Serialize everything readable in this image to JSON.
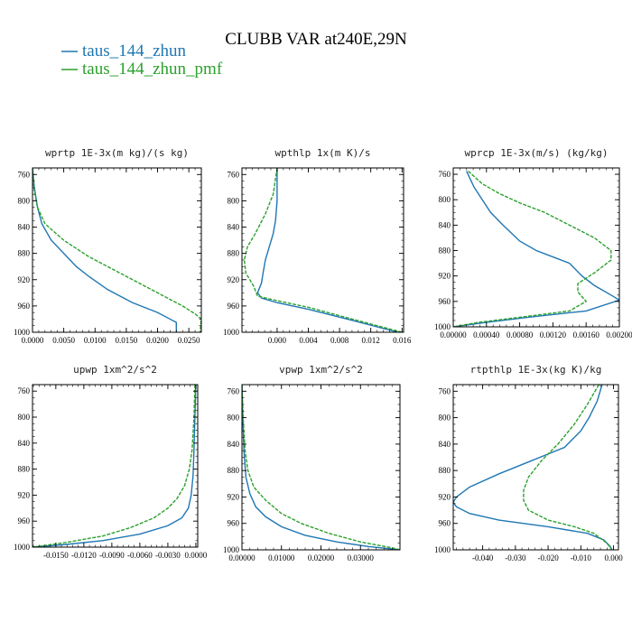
{
  "title": "CLUBB VAR at240E,29N",
  "legend": [
    {
      "label": "taus_144_zhun",
      "color": "#1f77b4",
      "dash": false
    },
    {
      "label": "taus_144_zhun_pmf",
      "color": "#2ca02c",
      "dash": true
    }
  ],
  "chart_data": [
    {
      "type": "line",
      "title": "wprtp  1E-3x(m kg)/(s kg)",
      "xlim": [
        0,
        0.027
      ],
      "ylim": [
        1000,
        750
      ],
      "xticks": [
        0,
        0.005,
        0.01,
        0.015,
        0.02,
        0.025
      ],
      "xtick_labels": [
        "0.0000",
        "0.0050",
        "0.0100",
        "0.0150",
        "0.0200",
        "0.0250"
      ],
      "yticks": [
        760,
        800,
        840,
        880,
        920,
        960,
        1000
      ],
      "series": [
        {
          "name": "taus_144_zhun",
          "x": [
            0.0,
            0.0003,
            0.0008,
            0.0015,
            0.003,
            0.005,
            0.007,
            0.009,
            0.012,
            0.016,
            0.02,
            0.022,
            0.023,
            0.023
          ],
          "y": [
            750,
            780,
            810,
            835,
            860,
            880,
            900,
            915,
            935,
            955,
            970,
            980,
            985,
            1000
          ]
        },
        {
          "name": "taus_144_zhun_pmf",
          "x": [
            0.0,
            0.0002,
            0.0008,
            0.002,
            0.005,
            0.009,
            0.013,
            0.017,
            0.021,
            0.024,
            0.026,
            0.027,
            0.0268
          ],
          "y": [
            750,
            780,
            810,
            835,
            860,
            885,
            905,
            925,
            945,
            960,
            972,
            980,
            1000
          ]
        }
      ]
    },
    {
      "type": "line",
      "title": "wpthlp  1x(m K)/s",
      "xlim": [
        -0.0045,
        0.0162
      ],
      "ylim": [
        1000,
        750
      ],
      "xticks": [
        0,
        0.004,
        0.008,
        0.012,
        0.016
      ],
      "xtick_labels": [
        "0.000",
        "0.004",
        "0.008",
        "0.012",
        "0.016"
      ],
      "yticks": [
        760,
        800,
        840,
        880,
        920,
        960,
        1000
      ],
      "series": [
        {
          "name": "taus_144_zhun",
          "x": [
            0.0,
            0.0,
            -0.0002,
            -0.0005,
            -0.001,
            -0.0015,
            -0.0018,
            -0.002,
            -0.0025,
            -0.002,
            0.0,
            0.004,
            0.009,
            0.0155
          ],
          "y": [
            750,
            800,
            830,
            850,
            870,
            890,
            910,
            925,
            940,
            948,
            955,
            965,
            980,
            1000
          ]
        },
        {
          "name": "taus_144_zhun_pmf",
          "x": [
            0.0,
            -0.0005,
            -0.0015,
            -0.0028,
            -0.0038,
            -0.0042,
            -0.004,
            -0.003,
            -0.0025,
            0.0,
            0.004,
            0.009,
            0.016
          ],
          "y": [
            750,
            790,
            820,
            850,
            870,
            890,
            910,
            930,
            945,
            952,
            962,
            978,
            1000
          ]
        }
      ]
    },
    {
      "type": "line",
      "title": "wprcp  1E-3x(m/s) (kg/kg)",
      "xlim": [
        0,
        0.002
      ],
      "ylim": [
        1000,
        750
      ],
      "xticks": [
        0,
        0.0004,
        0.0008,
        0.0012,
        0.0016,
        0.002
      ],
      "xtick_labels": [
        "0.00000",
        "0.00040",
        "0.00080",
        "0.00120",
        "0.00160",
        "0.00200"
      ],
      "yticks": [
        760,
        800,
        840,
        880,
        920,
        960,
        1000
      ],
      "series": [
        {
          "name": "taus_144_zhun",
          "x": [
            0.00016,
            0.00025,
            0.00035,
            0.00045,
            0.0006,
            0.0008,
            0.001,
            0.0012,
            0.0014,
            0.00155,
            0.0017,
            0.0019,
            0.002,
            0.0016,
            0.0009,
            0.0004,
            0.0
          ],
          "y": [
            755,
            780,
            800,
            820,
            840,
            865,
            880,
            890,
            900,
            920,
            935,
            950,
            958,
            975,
            985,
            993,
            1000
          ]
        },
        {
          "name": "taus_144_zhun_pmf",
          "x": [
            0.00018,
            0.00035,
            0.00055,
            0.0008,
            0.0011,
            0.0014,
            0.0017,
            0.0019,
            0.0019,
            0.0017,
            0.0015,
            0.0015,
            0.0016,
            0.0014,
            0.0008,
            0.0003,
            0.0
          ],
          "y": [
            755,
            775,
            790,
            805,
            820,
            840,
            860,
            880,
            895,
            915,
            932,
            945,
            960,
            975,
            985,
            993,
            1000
          ]
        }
      ]
    },
    {
      "type": "line",
      "title": "upwp  1xm^2/s^2",
      "xlim": [
        -0.0175,
        0.0002
      ],
      "ylim": [
        1000,
        750
      ],
      "xticks": [
        -0.015,
        -0.012,
        -0.009,
        -0.006,
        -0.003,
        0
      ],
      "xtick_labels": [
        "-0.0150",
        "-0.0120",
        "-0.0090",
        "-0.0060",
        "-0.0030",
        "0.0000"
      ],
      "yticks": [
        760,
        800,
        840,
        880,
        920,
        960,
        1000
      ],
      "series": [
        {
          "name": "taus_144_zhun",
          "x": [
            0.0,
            -0.0001,
            -0.0002,
            -0.0003,
            -0.0005,
            -0.0008,
            -0.0015,
            -0.003,
            -0.006,
            -0.01,
            -0.014,
            -0.0175
          ],
          "y": [
            750,
            800,
            850,
            890,
            920,
            940,
            955,
            967,
            980,
            990,
            996,
            1000
          ]
        },
        {
          "name": "taus_144_zhun_pmf",
          "x": [
            -0.0001,
            -0.0002,
            -0.0004,
            -0.0007,
            -0.0012,
            -0.002,
            -0.003,
            -0.0045,
            -0.007,
            -0.01,
            -0.014,
            -0.0175
          ],
          "y": [
            750,
            800,
            850,
            880,
            905,
            925,
            940,
            955,
            970,
            983,
            993,
            1000
          ]
        }
      ]
    },
    {
      "type": "line",
      "title": "vpwp  1xm^2/s^2",
      "xlim": [
        0,
        0.04
      ],
      "ylim": [
        1000,
        750
      ],
      "xticks": [
        0,
        0.01,
        0.02,
        0.03
      ],
      "xtick_labels": [
        "0.00000",
        "0.01000",
        "0.02000",
        "0.03000"
      ],
      "yticks": [
        760,
        800,
        840,
        880,
        920,
        960,
        1000
      ],
      "series": [
        {
          "name": "taus_144_zhun",
          "x": [
            0.0,
            0.0002,
            0.0005,
            0.001,
            0.002,
            0.0035,
            0.006,
            0.01,
            0.016,
            0.024,
            0.032,
            0.04
          ],
          "y": [
            750,
            800,
            850,
            890,
            915,
            935,
            950,
            965,
            978,
            988,
            995,
            1000
          ]
        },
        {
          "name": "taus_144_zhun_pmf",
          "x": [
            0.0,
            0.0003,
            0.0008,
            0.0015,
            0.003,
            0.006,
            0.01,
            0.015,
            0.022,
            0.03,
            0.038,
            0.04
          ],
          "y": [
            750,
            800,
            850,
            880,
            905,
            925,
            945,
            960,
            975,
            988,
            997,
            1000
          ]
        }
      ]
    },
    {
      "type": "line",
      "title": "rtpthlp  1E-3x(kg K)/kg",
      "xlim": [
        -0.049,
        0.0015
      ],
      "ylim": [
        1000,
        750
      ],
      "xticks": [
        -0.04,
        -0.03,
        -0.02,
        -0.01,
        0
      ],
      "xtick_labels": [
        "-0.040",
        "-0.030",
        "-0.020",
        "-0.010",
        "0.000"
      ],
      "yticks": [
        760,
        800,
        840,
        880,
        920,
        960,
        1000
      ],
      "series": [
        {
          "name": "taus_144_zhun",
          "x": [
            -0.0035,
            -0.005,
            -0.0075,
            -0.01,
            -0.015,
            -0.025,
            -0.035,
            -0.044,
            -0.048,
            -0.049,
            -0.048,
            -0.044,
            -0.035,
            -0.02,
            -0.008,
            -0.003,
            -0.001,
            -0.0005
          ],
          "y": [
            750,
            775,
            800,
            820,
            845,
            865,
            885,
            905,
            920,
            928,
            935,
            945,
            955,
            965,
            975,
            985,
            995,
            1000
          ]
        },
        {
          "name": "taus_144_zhun_pmf",
          "x": [
            -0.0045,
            -0.008,
            -0.012,
            -0.017,
            -0.022,
            -0.026,
            -0.0275,
            -0.0275,
            -0.026,
            -0.02,
            -0.012,
            -0.006,
            -0.002,
            -0.0005
          ],
          "y": [
            750,
            780,
            810,
            840,
            865,
            890,
            910,
            925,
            940,
            955,
            965,
            975,
            990,
            1000
          ]
        }
      ]
    }
  ]
}
